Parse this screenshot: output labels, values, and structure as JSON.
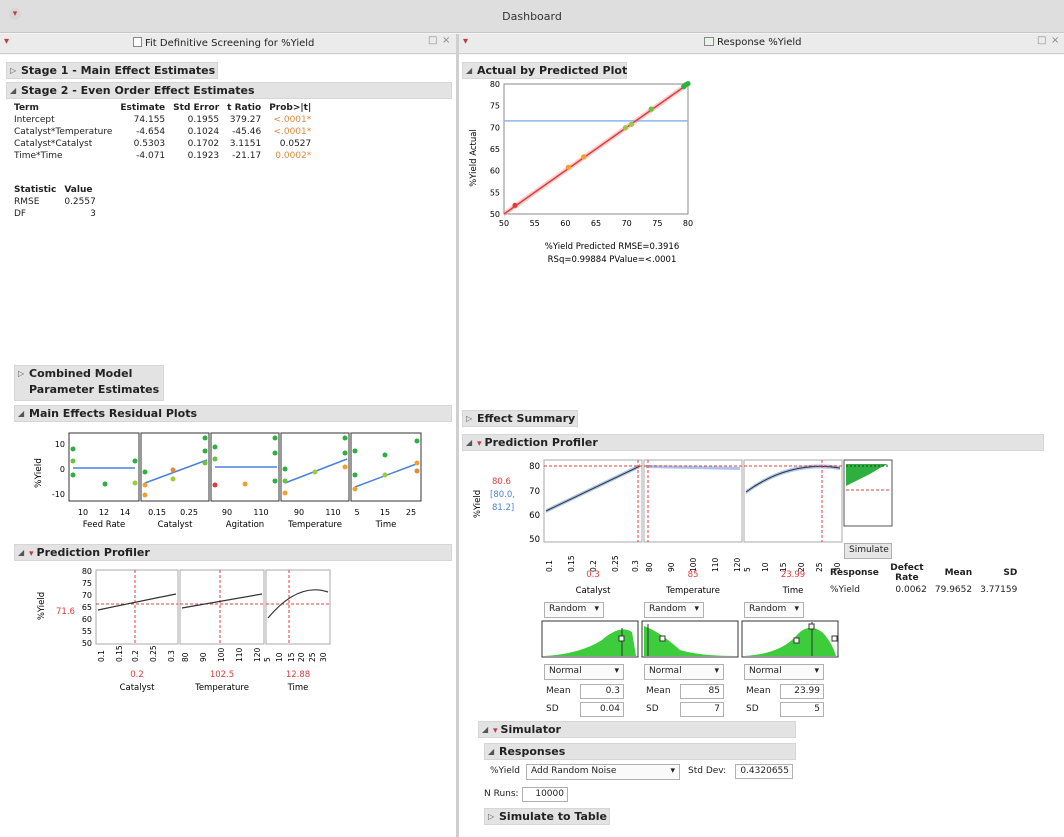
{
  "window": {
    "title": "Dashboard"
  },
  "left_pane": {
    "title": "Fit Definitive Screening for %Yield",
    "stage1": "Stage 1 - Main Effect Estimates",
    "stage2": "Stage 2 - Even Order Effect Estimates",
    "table_headers": [
      "Term",
      "Estimate",
      "Std Error",
      "t Ratio",
      "Prob>|t|"
    ],
    "rows": [
      {
        "term": "Intercept",
        "estimate": "74.155",
        "stderr": "0.1955",
        "tratio": "379.27",
        "prob": "<.0001*"
      },
      {
        "term": "Catalyst*Temperature",
        "estimate": "-4.654",
        "stderr": "0.1024",
        "tratio": "-45.46",
        "prob": "<.0001*"
      },
      {
        "term": "Catalyst*Catalyst",
        "estimate": "0.5303",
        "stderr": "0.1702",
        "tratio": "3.1151",
        "prob": "0.0527"
      },
      {
        "term": "Time*Time",
        "estimate": "-4.071",
        "stderr": "0.1923",
        "tratio": "-21.17",
        "prob": "0.0002*"
      }
    ],
    "stat_headers": [
      "Statistic",
      "Value"
    ],
    "stats": [
      {
        "name": "RMSE",
        "value": "0.2557"
      },
      {
        "name": "DF",
        "value": "3"
      }
    ],
    "combined_line1": "Combined Model",
    "combined_line2": "Parameter Estimates",
    "residual_title": "Main Effects Residual Plots",
    "residual_ylabel": "%Yield",
    "residual_yticks": [
      "10",
      "0",
      "-10"
    ],
    "residual_panels": [
      {
        "label": "Feed Rate",
        "ticks": [
          "10",
          "12",
          "14"
        ]
      },
      {
        "label": "Catalyst",
        "ticks": [
          "0.15",
          "0.25"
        ]
      },
      {
        "label": "Agitation",
        "ticks": [
          "90",
          "110"
        ]
      },
      {
        "label": "Temperature",
        "ticks": [
          "90",
          "110"
        ]
      },
      {
        "label": "Time",
        "ticks": [
          "5",
          "15",
          "25"
        ]
      }
    ],
    "profiler_title": "Prediction Profiler",
    "profiler_ylabel": "%Yield",
    "profiler_yvalue": "71.6",
    "profiler_yticks": [
      "80",
      "75",
      "70",
      "65",
      "60",
      "55",
      "50"
    ],
    "profiler_factors": [
      {
        "name": "Catalyst",
        "value": "0.2",
        "ticks": [
          "0.1",
          "0.15",
          "0.2",
          "0.25",
          "0.3"
        ]
      },
      {
        "name": "Temperature",
        "value": "102.5",
        "ticks": [
          "80",
          "90",
          "100",
          "110",
          "120"
        ]
      },
      {
        "name": "Time",
        "value": "12.88",
        "ticks": [
          "5",
          "10",
          "15",
          "20",
          "25",
          "30"
        ]
      }
    ]
  },
  "right_pane": {
    "title": "Response %Yield",
    "avp_title": "Actual by Predicted Plot",
    "avp_ylabel": "%Yield Actual",
    "avp_yticks": [
      "80",
      "75",
      "70",
      "65",
      "60",
      "55",
      "50"
    ],
    "avp_xticks": [
      "50",
      "55",
      "60",
      "65",
      "70",
      "75",
      "80"
    ],
    "avp_xlabel": "%Yield Predicted RMSE=0.3916",
    "avp_stats": "RSq=0.99884 PValue=<.0001",
    "effect_summary": "Effect Summary",
    "profiler_title": "Prediction Profiler",
    "profiler_ylabel": "%Yield",
    "profiler_value": "80.6",
    "profiler_ci1": "[80.0,",
    "profiler_ci2": "81.2]",
    "profiler_yticks": [
      "80",
      "70",
      "60",
      "50"
    ],
    "factors": [
      {
        "name": "Catalyst",
        "value": "0.3",
        "ticks": [
          "0.1",
          "0.15",
          "0.2",
          "0.25",
          "0.3"
        ],
        "dist": "Random",
        "type": "Normal",
        "mean": "0.3",
        "sd": "0.04"
      },
      {
        "name": "Temperature",
        "value": "85",
        "ticks": [
          "80",
          "90",
          "100",
          "110",
          "120"
        ],
        "dist": "Random",
        "type": "Normal",
        "mean": "85",
        "sd": "7"
      },
      {
        "name": "Time",
        "value": "23.99",
        "ticks": [
          "5",
          "10",
          "15",
          "20",
          "25",
          "30"
        ],
        "dist": "Random",
        "type": "Normal",
        "mean": "23.99",
        "sd": "5"
      }
    ],
    "mean_label": "Mean",
    "sd_label": "SD",
    "simulate_button": "Simulate",
    "defect_headers": [
      "Response",
      "Defect Rate",
      "Mean",
      "SD"
    ],
    "defect_row": {
      "response": "%Yield",
      "rate": "0.0062",
      "mean": "79.9652",
      "sd": "3.77159"
    },
    "simulator_title": "Simulator",
    "responses_title": "Responses",
    "response_name": "%Yield",
    "noise_option": "Add Random Noise",
    "stddev_label": "Std Dev:",
    "stddev_value": "0.4320655",
    "nruns_label": "N Runs:",
    "nruns_value": "10000",
    "simulate_to_table": "Simulate to Table"
  },
  "chart_data": [
    {
      "type": "scatter",
      "title": "Actual by Predicted Plot",
      "xlabel": "%Yield Predicted RMSE=0.3916",
      "ylabel": "%Yield Actual",
      "xlim": [
        50,
        80
      ],
      "ylim": [
        50,
        80
      ],
      "mean_line": 71.5,
      "points": [
        [
          51.8,
          52.0
        ],
        [
          60.5,
          60.8
        ],
        [
          63.0,
          63.2
        ],
        [
          69.8,
          69.9
        ],
        [
          70.8,
          70.7
        ],
        [
          74.0,
          74.2
        ],
        [
          79.3,
          79.4
        ],
        [
          79.6,
          79.8
        ],
        [
          80.0,
          80.1
        ]
      ],
      "point_colors": [
        "#e03c3c",
        "#f0a030",
        "#f0a030",
        "#9ccc3c",
        "#9ccc3c",
        "#6cc03c",
        "#2db040",
        "#2db040",
        "#2db040"
      ]
    }
  ]
}
